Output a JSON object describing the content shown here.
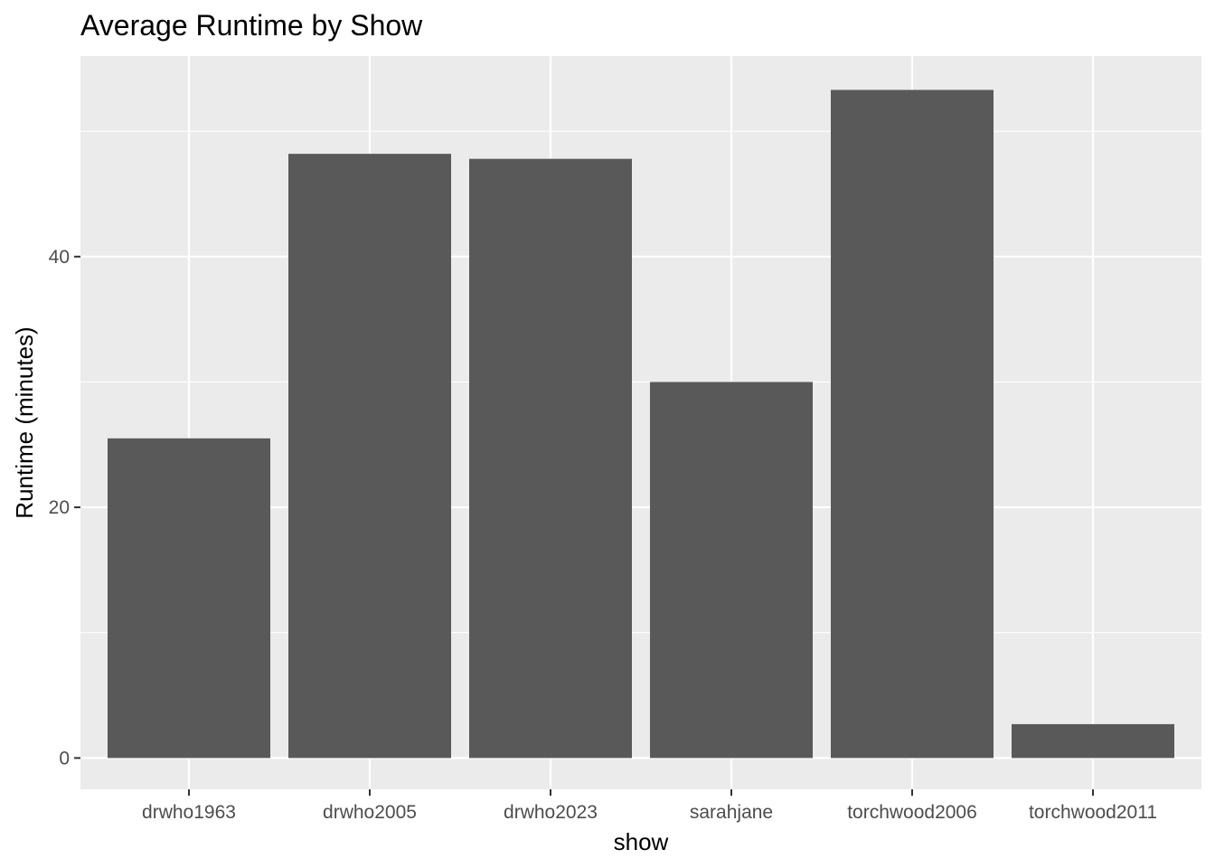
{
  "chart_data": {
    "type": "bar",
    "title": "Average Runtime by Show",
    "xlabel": "show",
    "ylabel": "Runtime (minutes)",
    "categories": [
      "drwho1963",
      "drwho2005",
      "drwho2023",
      "sarahjane",
      "torchwood2006",
      "torchwood2011"
    ],
    "values": [
      25.5,
      48.2,
      47.8,
      30.0,
      53.3,
      2.7
    ],
    "ylim": [
      -2.5,
      56.0
    ],
    "yticks": [
      0,
      20,
      40
    ],
    "yticks_minor": [
      10,
      30,
      50
    ],
    "grid": true,
    "legend": "none",
    "colors": {
      "bar": "#595959",
      "panel": "#ebebeb",
      "grid": "#ffffff",
      "tick_text": "#4d4d4d",
      "tick_mark": "#333333"
    }
  }
}
